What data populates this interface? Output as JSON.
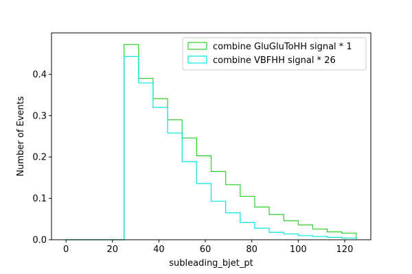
{
  "chart_data": {
    "type": "histogram-step",
    "xlabel": "subleading_bjet_pt",
    "ylabel": "Number of Events",
    "xlim": [
      -6.25,
      131.25
    ],
    "ylim": [
      0,
      0.5
    ],
    "xticks": [
      0,
      20,
      40,
      60,
      80,
      100,
      120
    ],
    "yticks": [
      0.0,
      0.1,
      0.2,
      0.3,
      0.4
    ],
    "bin_edges": [
      0,
      6.25,
      12.5,
      18.75,
      25,
      31.25,
      37.5,
      43.75,
      50,
      56.25,
      62.5,
      68.75,
      75,
      81.25,
      87.5,
      93.75,
      100,
      106.25,
      112.5,
      118.75,
      125
    ],
    "legend_position": "top-right",
    "grid": false,
    "series": [
      {
        "name": "combine GluGluToHH signal * 1",
        "color": "#2ecc2e",
        "values": [
          0,
          0,
          0,
          0,
          0.472,
          0.39,
          0.341,
          0.29,
          0.246,
          0.203,
          0.165,
          0.133,
          0.105,
          0.079,
          0.061,
          0.046,
          0.036,
          0.026,
          0.019,
          0.016
        ]
      },
      {
        "name": "combine VBFHH signal * 26",
        "color": "#00e5e5",
        "values": [
          0,
          0,
          0,
          0,
          0.443,
          0.379,
          0.32,
          0.258,
          0.189,
          0.136,
          0.093,
          0.065,
          0.042,
          0.028,
          0.018,
          0.014,
          0.01,
          0.008,
          0.006,
          0.004
        ]
      }
    ]
  }
}
